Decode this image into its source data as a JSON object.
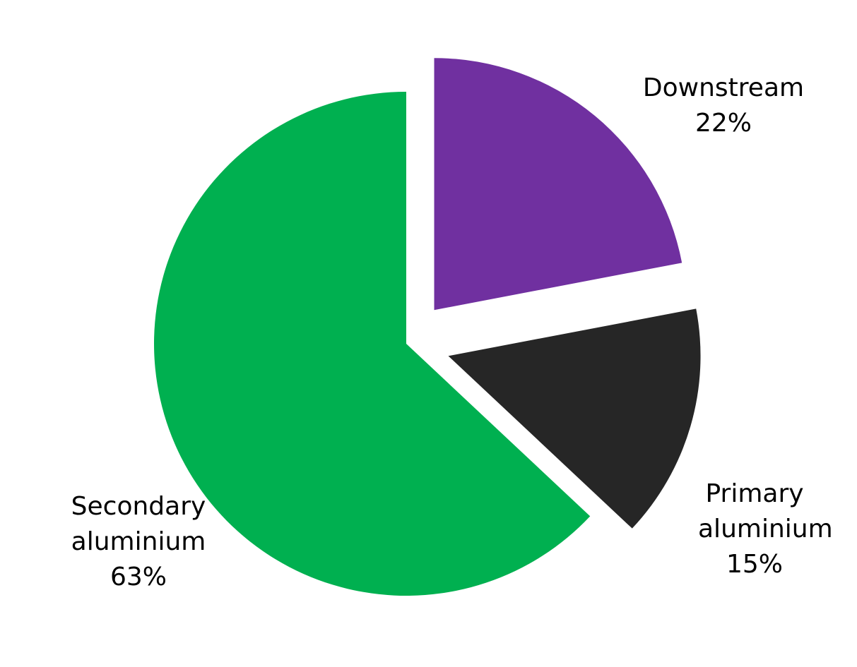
{
  "chart_data": {
    "type": "pie",
    "categories": [
      "Downstream",
      "Primary aluminium",
      "Secondary aluminium"
    ],
    "values": [
      22,
      15,
      63
    ],
    "value_labels": [
      "22%",
      "15%",
      "63%"
    ],
    "colors": [
      "#7030a0",
      "#262626",
      "#00b050"
    ]
  }
}
